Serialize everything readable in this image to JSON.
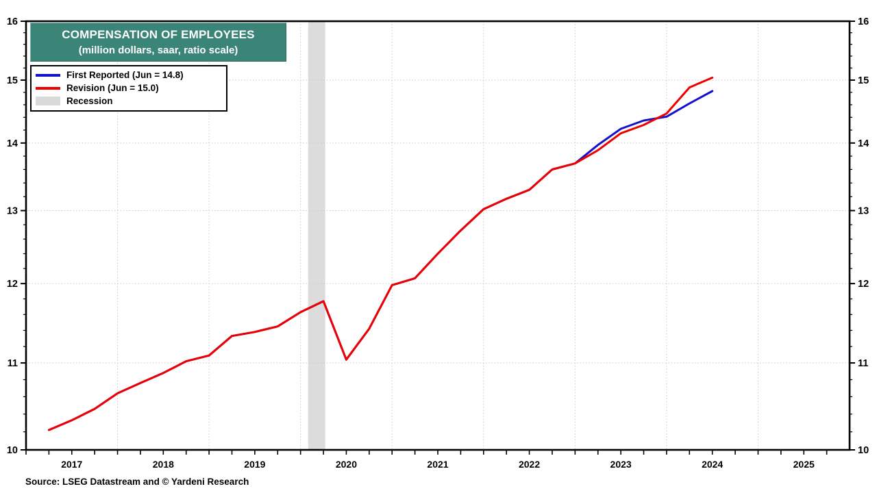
{
  "header": {
    "title": "COMPENSATION OF EMPLOYEES",
    "subtitle": "(million dollars, saar, ratio scale)",
    "box_color": "#3a8577",
    "text_color": "#ffffff"
  },
  "legend": {
    "items": [
      {
        "label": "First Reported (Jun = 14.8)",
        "color": "#1212cc",
        "swatch": "line"
      },
      {
        "label": "Revision (Jun = 15.0)",
        "color": "#ee0000",
        "swatch": "line"
      },
      {
        "label": "Recession",
        "color": "#d9d9d9",
        "swatch": "band"
      }
    ]
  },
  "source": "Source: LSEG Datastream and © Yardeni Research",
  "chart_data": {
    "type": "line",
    "title": "COMPENSATION OF EMPLOYEES",
    "subtitle": "(million dollars, saar, ratio scale)",
    "y_scale": "log",
    "ylim": [
      10,
      16
    ],
    "xlim": [
      2017,
      2026
    ],
    "y_ticks": [
      10,
      11,
      12,
      13,
      14,
      15,
      16
    ],
    "y_gridlines": [
      11,
      12,
      13,
      14,
      15
    ],
    "y_minor_step": 0.2,
    "x_year_labels": [
      2017,
      2018,
      2019,
      2020,
      2021,
      2022,
      2023,
      2024,
      2025
    ],
    "x_gridline_years": [
      2018,
      2019,
      2020,
      2021,
      2022,
      2023,
      2024,
      2025
    ],
    "x_minor_step": 0.25,
    "grid_style": "dotted",
    "legend_position": "top-left",
    "recession_bands": [
      [
        2020.083,
        2020.27
      ]
    ],
    "band_color": "#dcdcdc",
    "gridline_color": "#c8c8c8",
    "frame_color": "#000000",
    "x": [
      2017.25,
      2017.5,
      2017.75,
      2018.0,
      2018.25,
      2018.5,
      2018.75,
      2019.0,
      2019.25,
      2019.5,
      2019.75,
      2020.0,
      2020.25,
      2020.5,
      2020.75,
      2021.0,
      2021.25,
      2021.5,
      2021.75,
      2022.0,
      2022.25,
      2022.5,
      2022.75,
      2023.0,
      2023.25,
      2023.5,
      2023.75,
      2024.0,
      2024.25,
      2024.5
    ],
    "series": [
      {
        "name": "First Reported (Jun = 14.8)",
        "color": "#1212cc",
        "width": 3,
        "values": [
          10.22,
          10.33,
          10.46,
          10.64,
          10.76,
          10.88,
          11.02,
          11.09,
          11.33,
          11.38,
          11.45,
          11.63,
          11.77,
          11.04,
          11.42,
          11.98,
          12.07,
          12.4,
          12.72,
          13.02,
          13.17,
          13.3,
          13.6,
          13.69,
          13.97,
          14.22,
          14.35,
          14.41,
          14.62,
          14.82
        ]
      },
      {
        "name": "Revision (Jun = 15.0)",
        "color": "#ee0000",
        "width": 3,
        "values": [
          10.22,
          10.33,
          10.46,
          10.64,
          10.76,
          10.88,
          11.02,
          11.09,
          11.33,
          11.38,
          11.45,
          11.63,
          11.77,
          11.04,
          11.42,
          11.98,
          12.07,
          12.4,
          12.72,
          13.02,
          13.17,
          13.3,
          13.6,
          13.69,
          13.89,
          14.15,
          14.28,
          14.46,
          14.88,
          15.04
        ]
      }
    ]
  }
}
